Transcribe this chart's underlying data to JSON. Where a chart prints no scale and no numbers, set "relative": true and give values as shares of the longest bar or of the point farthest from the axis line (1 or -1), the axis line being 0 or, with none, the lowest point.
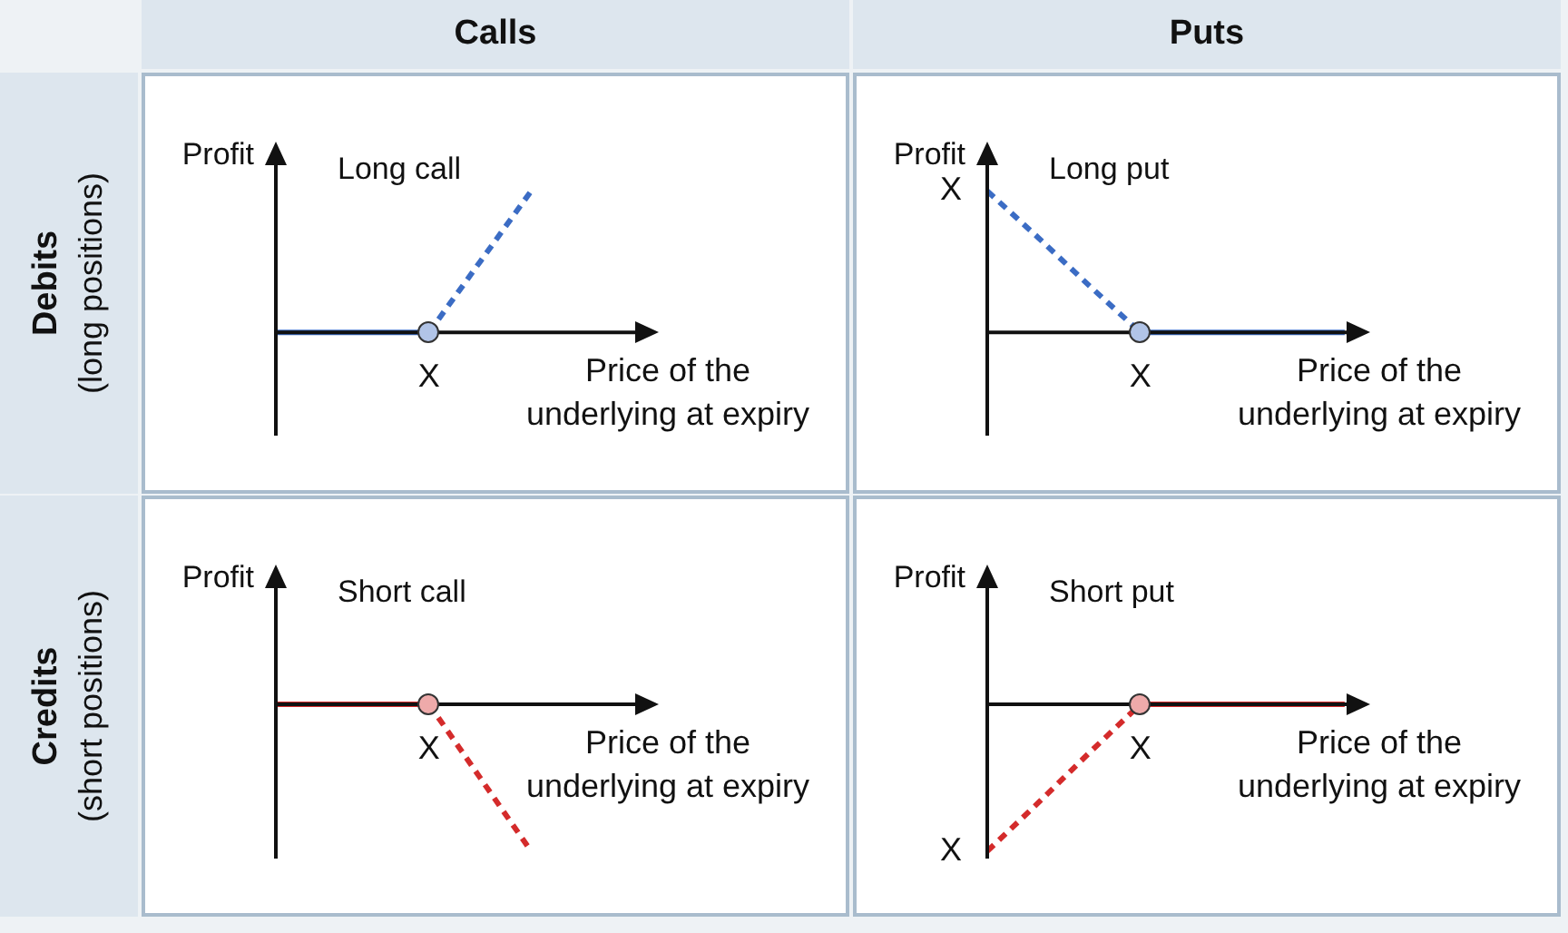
{
  "chart_data": [
    {
      "type": "other",
      "annotations": [
        "Calls",
        "Puts",
        "Debits",
        "(long positions)",
        "Credits",
        "(short positions)"
      ]
    },
    {
      "type": "line",
      "title": "Long call",
      "ylabel": "Profit",
      "xlabel": "Price of the underlying at expiry",
      "relative": true,
      "categories": [
        null,
        null,
        null,
        null,
        null,
        null,
        null,
        null
      ],
      "annotations": [
        "X"
      ],
      "series": [
        {
          "color": "#3b6cc4",
          "values": [
            0,
            0,
            0,
            0,
            null,
            null,
            null,
            null
          ],
          "line_style": "solid"
        },
        {
          "color": "#3b6cc4",
          "values": [
            null,
            null,
            null,
            0,
            0.5,
            1,
            null,
            null
          ],
          "line_style": "dashed"
        }
      ]
    },
    {
      "type": "line",
      "title": "Long put",
      "ylabel": "Profit",
      "xlabel": "Price of the underlying at expiry",
      "relative": true,
      "categories": [
        null,
        null,
        null,
        null,
        null,
        null,
        null,
        null
      ],
      "annotations": [
        "X",
        "X"
      ],
      "series": [
        {
          "color": "#3b6cc4",
          "values": [
            1,
            0.67,
            0.33,
            0,
            null,
            null,
            null,
            null
          ],
          "line_style": "dashed"
        },
        {
          "color": "#3b6cc4",
          "values": [
            null,
            null,
            null,
            0,
            0,
            0,
            0,
            0
          ],
          "line_style": "solid"
        }
      ]
    },
    {
      "type": "line",
      "title": "Short call",
      "ylabel": "Profit",
      "xlabel": "Price of the underlying at expiry",
      "relative": true,
      "categories": [
        null,
        null,
        null,
        null,
        null,
        null,
        null,
        null
      ],
      "annotations": [
        "X"
      ],
      "series": [
        {
          "color": "#d42b2b",
          "values": [
            0,
            0,
            0,
            0,
            null,
            null,
            null,
            null
          ],
          "line_style": "solid"
        },
        {
          "color": "#d42b2b",
          "values": [
            null,
            null,
            null,
            0,
            -0.5,
            -1,
            null,
            null
          ],
          "line_style": "dashed"
        }
      ]
    },
    {
      "type": "line",
      "title": "Short put",
      "ylabel": "Profit",
      "xlabel": "Price of the underlying at expiry",
      "relative": true,
      "categories": [
        null,
        null,
        null,
        null,
        null,
        null,
        null,
        null
      ],
      "annotations": [
        "X",
        "X"
      ],
      "series": [
        {
          "color": "#d42b2b",
          "values": [
            -1,
            -0.67,
            -0.33,
            0,
            null,
            null,
            null,
            null
          ],
          "line_style": "dashed"
        },
        {
          "color": "#d42b2b",
          "values": [
            null,
            null,
            null,
            0,
            0,
            0,
            0,
            0
          ],
          "line_style": "solid"
        }
      ]
    }
  ]
}
